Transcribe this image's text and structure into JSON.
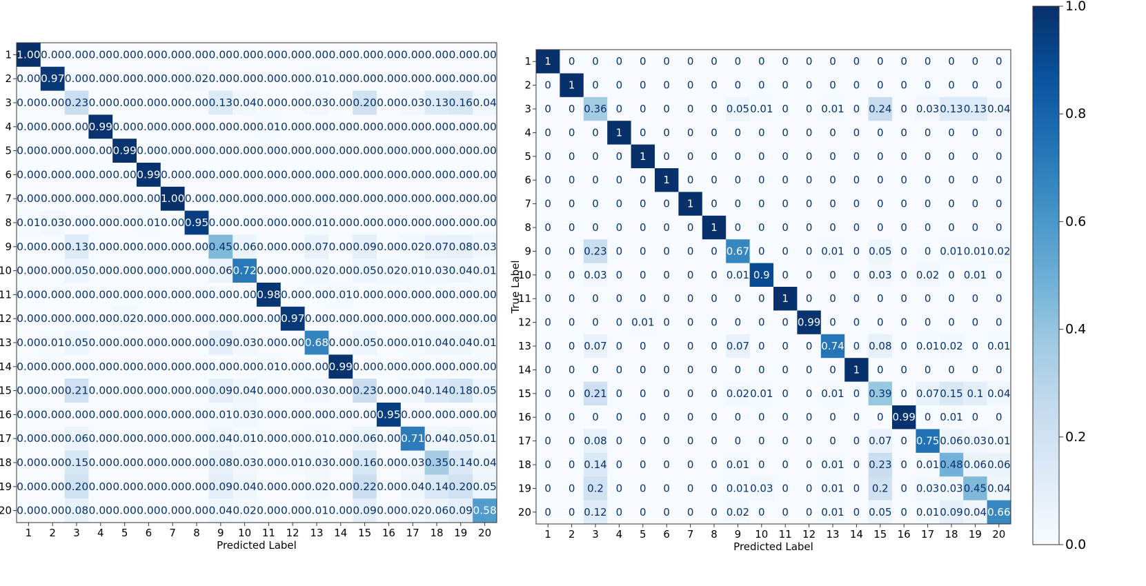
{
  "chart_data": [
    {
      "type": "heatmap",
      "title": "",
      "xlabel": "Predicted Label",
      "ylabel": "",
      "value_format": "fixed2",
      "categories": [
        "1",
        "2",
        "3",
        "4",
        "5",
        "6",
        "7",
        "8",
        "9",
        "10",
        "11",
        "12",
        "13",
        "14",
        "15",
        "16",
        "17",
        "18",
        "19",
        "20"
      ],
      "matrix": [
        [
          1.0,
          0.0,
          0.0,
          0.0,
          0.0,
          0.0,
          0.0,
          0.0,
          0.0,
          0.0,
          0.0,
          0.0,
          0.0,
          0.0,
          0.0,
          0.0,
          0.0,
          0.0,
          0.0,
          0.0
        ],
        [
          0.0,
          0.97,
          0.0,
          0.0,
          0.0,
          0.0,
          0.0,
          0.02,
          0.0,
          0.0,
          0.0,
          0.0,
          0.01,
          0.0,
          0.0,
          0.0,
          0.0,
          0.0,
          0.0,
          0.0
        ],
        [
          0.0,
          0.0,
          0.23,
          0.0,
          0.0,
          0.0,
          0.0,
          0.0,
          0.13,
          0.04,
          0.0,
          0.0,
          0.03,
          0.0,
          0.2,
          0.0,
          0.03,
          0.13,
          0.16,
          0.04
        ],
        [
          0.0,
          0.0,
          0.0,
          0.99,
          0.0,
          0.0,
          0.0,
          0.0,
          0.0,
          0.0,
          0.01,
          0.0,
          0.0,
          0.0,
          0.0,
          0.0,
          0.0,
          0.0,
          0.0,
          0.0
        ],
        [
          0.0,
          0.0,
          0.0,
          0.0,
          0.99,
          0.0,
          0.0,
          0.0,
          0.0,
          0.0,
          0.0,
          0.0,
          0.0,
          0.0,
          0.0,
          0.0,
          0.0,
          0.0,
          0.0,
          0.0
        ],
        [
          0.0,
          0.0,
          0.0,
          0.0,
          0.0,
          0.99,
          0.0,
          0.0,
          0.0,
          0.0,
          0.0,
          0.0,
          0.0,
          0.0,
          0.0,
          0.0,
          0.0,
          0.0,
          0.0,
          0.0
        ],
        [
          0.0,
          0.0,
          0.0,
          0.0,
          0.0,
          0.0,
          1.0,
          0.0,
          0.0,
          0.0,
          0.0,
          0.0,
          0.0,
          0.0,
          0.0,
          0.0,
          0.0,
          0.0,
          0.0,
          0.0
        ],
        [
          0.01,
          0.03,
          0.0,
          0.0,
          0.0,
          0.01,
          0.0,
          0.95,
          0.0,
          0.0,
          0.0,
          0.0,
          0.01,
          0.0,
          0.0,
          0.0,
          0.0,
          0.0,
          0.0,
          0.0
        ],
        [
          0.0,
          0.0,
          0.13,
          0.0,
          0.0,
          0.0,
          0.0,
          0.0,
          0.45,
          0.06,
          0.0,
          0.0,
          0.07,
          0.0,
          0.09,
          0.0,
          0.02,
          0.07,
          0.08,
          0.03
        ],
        [
          0.0,
          0.0,
          0.05,
          0.0,
          0.0,
          0.0,
          0.0,
          0.0,
          0.06,
          0.72,
          0.0,
          0.0,
          0.02,
          0.0,
          0.05,
          0.02,
          0.01,
          0.03,
          0.04,
          0.01
        ],
        [
          0.0,
          0.0,
          0.0,
          0.0,
          0.0,
          0.0,
          0.0,
          0.0,
          0.0,
          0.0,
          0.98,
          0.0,
          0.0,
          0.01,
          0.0,
          0.0,
          0.0,
          0.0,
          0.0,
          0.0
        ],
        [
          0.0,
          0.0,
          0.0,
          0.0,
          0.02,
          0.0,
          0.0,
          0.0,
          0.0,
          0.0,
          0.0,
          0.97,
          0.0,
          0.0,
          0.0,
          0.0,
          0.0,
          0.0,
          0.0,
          0.0
        ],
        [
          0.0,
          0.01,
          0.05,
          0.0,
          0.0,
          0.0,
          0.0,
          0.0,
          0.09,
          0.03,
          0.0,
          0.0,
          0.68,
          0.0,
          0.05,
          0.0,
          0.01,
          0.04,
          0.04,
          0.01
        ],
        [
          0.0,
          0.0,
          0.0,
          0.0,
          0.0,
          0.0,
          0.0,
          0.0,
          0.0,
          0.0,
          0.01,
          0.0,
          0.0,
          0.99,
          0.0,
          0.0,
          0.0,
          0.0,
          0.0,
          0.0
        ],
        [
          0.0,
          0.0,
          0.21,
          0.0,
          0.0,
          0.0,
          0.0,
          0.0,
          0.09,
          0.04,
          0.0,
          0.0,
          0.03,
          0.0,
          0.23,
          0.0,
          0.04,
          0.14,
          0.18,
          0.05
        ],
        [
          0.0,
          0.0,
          0.0,
          0.0,
          0.0,
          0.0,
          0.0,
          0.0,
          0.01,
          0.03,
          0.0,
          0.0,
          0.0,
          0.0,
          0.0,
          0.95,
          0.0,
          0.0,
          0.0,
          0.0
        ],
        [
          0.0,
          0.0,
          0.06,
          0.0,
          0.0,
          0.0,
          0.0,
          0.0,
          0.04,
          0.01,
          0.0,
          0.0,
          0.01,
          0.0,
          0.06,
          0.0,
          0.71,
          0.04,
          0.05,
          0.01
        ],
        [
          0.0,
          0.0,
          0.15,
          0.0,
          0.0,
          0.0,
          0.0,
          0.0,
          0.08,
          0.03,
          0.0,
          0.01,
          0.03,
          0.0,
          0.16,
          0.0,
          0.03,
          0.35,
          0.14,
          0.04
        ],
        [
          0.0,
          0.0,
          0.2,
          0.0,
          0.0,
          0.0,
          0.0,
          0.0,
          0.09,
          0.04,
          0.0,
          0.0,
          0.02,
          0.0,
          0.22,
          0.0,
          0.04,
          0.14,
          0.2,
          0.05
        ],
        [
          0.0,
          0.0,
          0.08,
          0.0,
          0.0,
          0.0,
          0.0,
          0.0,
          0.04,
          0.02,
          0.0,
          0.0,
          0.01,
          0.0,
          0.09,
          0.0,
          0.02,
          0.06,
          0.09,
          0.58
        ]
      ]
    },
    {
      "type": "heatmap",
      "title": "",
      "xlabel": "Predicted Label",
      "ylabel": "True Label",
      "value_format": "general",
      "categories": [
        "1",
        "2",
        "3",
        "4",
        "5",
        "6",
        "7",
        "8",
        "9",
        "10",
        "11",
        "12",
        "13",
        "14",
        "15",
        "16",
        "17",
        "18",
        "19",
        "20"
      ],
      "matrix": [
        [
          1,
          0,
          0,
          0,
          0,
          0,
          0,
          0,
          0,
          0,
          0,
          0,
          0,
          0,
          0,
          0,
          0,
          0,
          0,
          0
        ],
        [
          0,
          1,
          0,
          0,
          0,
          0,
          0,
          0,
          0,
          0,
          0,
          0,
          0,
          0,
          0,
          0,
          0,
          0,
          0,
          0
        ],
        [
          0,
          0,
          0.36,
          0,
          0,
          0,
          0,
          0,
          0.05,
          0.01,
          0,
          0,
          0.01,
          0,
          0.24,
          0,
          0.03,
          0.13,
          0.13,
          0.04
        ],
        [
          0,
          0,
          0,
          1,
          0,
          0,
          0,
          0,
          0,
          0,
          0,
          0,
          0,
          0,
          0,
          0,
          0,
          0,
          0,
          0
        ],
        [
          0,
          0,
          0,
          0,
          1,
          0,
          0,
          0,
          0,
          0,
          0,
          0,
          0,
          0,
          0,
          0,
          0,
          0,
          0,
          0
        ],
        [
          0,
          0,
          0,
          0,
          0,
          1,
          0,
          0,
          0,
          0,
          0,
          0,
          0,
          0,
          0,
          0,
          0,
          0,
          0,
          0
        ],
        [
          0,
          0,
          0,
          0,
          0,
          0,
          1,
          0,
          0,
          0,
          0,
          0,
          0,
          0,
          0,
          0,
          0,
          0,
          0,
          0
        ],
        [
          0,
          0,
          0,
          0,
          0,
          0,
          0,
          1,
          0,
          0,
          0,
          0,
          0,
          0,
          0,
          0,
          0,
          0,
          0,
          0
        ],
        [
          0,
          0,
          0.23,
          0,
          0,
          0,
          0,
          0,
          0.67,
          0,
          0,
          0,
          0.01,
          0,
          0.05,
          0,
          0,
          0.01,
          0.01,
          0.02
        ],
        [
          0,
          0,
          0.03,
          0,
          0,
          0,
          0,
          0,
          0.01,
          0.9,
          0,
          0,
          0,
          0,
          0.03,
          0,
          0.02,
          0,
          0.01,
          0
        ],
        [
          0,
          0,
          0,
          0,
          0,
          0,
          0,
          0,
          0,
          0,
          1,
          0,
          0,
          0,
          0,
          0,
          0,
          0,
          0,
          0
        ],
        [
          0,
          0,
          0,
          0,
          0.01,
          0,
          0,
          0,
          0,
          0,
          0,
          0.99,
          0,
          0,
          0,
          0,
          0,
          0,
          0,
          0
        ],
        [
          0,
          0,
          0.07,
          0,
          0,
          0,
          0,
          0,
          0.07,
          0,
          0,
          0,
          0.74,
          0,
          0.08,
          0,
          0.01,
          0.02,
          0,
          0.01
        ],
        [
          0,
          0,
          0,
          0,
          0,
          0,
          0,
          0,
          0,
          0,
          0,
          0,
          0,
          1,
          0,
          0,
          0,
          0,
          0,
          0
        ],
        [
          0,
          0,
          0.21,
          0,
          0,
          0,
          0,
          0,
          0.02,
          0.01,
          0,
          0,
          0.01,
          0,
          0.39,
          0,
          0.07,
          0.15,
          0.1,
          0.04
        ],
        [
          0,
          0,
          0,
          0,
          0,
          0,
          0,
          0,
          0,
          0,
          0,
          0,
          0,
          0,
          0,
          0.99,
          0,
          0.01,
          0,
          0
        ],
        [
          0,
          0,
          0.08,
          0,
          0,
          0,
          0,
          0,
          0,
          0,
          0,
          0,
          0,
          0,
          0.07,
          0,
          0.75,
          0.06,
          0.03,
          0.01
        ],
        [
          0,
          0,
          0.14,
          0,
          0,
          0,
          0,
          0,
          0.01,
          0,
          0,
          0,
          0.01,
          0,
          0.23,
          0,
          0.01,
          0.48,
          0.06,
          0.06
        ],
        [
          0,
          0,
          0.2,
          0,
          0,
          0,
          0,
          0,
          0.01,
          0.03,
          0,
          0,
          0.01,
          0,
          0.2,
          0,
          0.03,
          0.03,
          0.45,
          0.04
        ],
        [
          0,
          0,
          0.12,
          0,
          0,
          0,
          0,
          0,
          0.02,
          0,
          0,
          0,
          0.01,
          0,
          0.05,
          0,
          0.01,
          0.09,
          0.04,
          0.66
        ]
      ]
    }
  ],
  "colorbar": {
    "colormap": "Blues",
    "vmin": 0,
    "vmax": 1,
    "ticks": [
      "0.0",
      "0.2",
      "0.4",
      "0.6",
      "0.8",
      "1.0"
    ],
    "tick_values": [
      0,
      0.2,
      0.4,
      0.6,
      0.8,
      1.0
    ]
  },
  "colors": {
    "blues_stops": [
      "#f7fbff",
      "#deebf7",
      "#c6dbef",
      "#9ecae1",
      "#6baed6",
      "#4292c6",
      "#2171b5",
      "#08519c",
      "#08306b"
    ],
    "dark_text": "#08306b",
    "light_text": "#ffffff"
  }
}
